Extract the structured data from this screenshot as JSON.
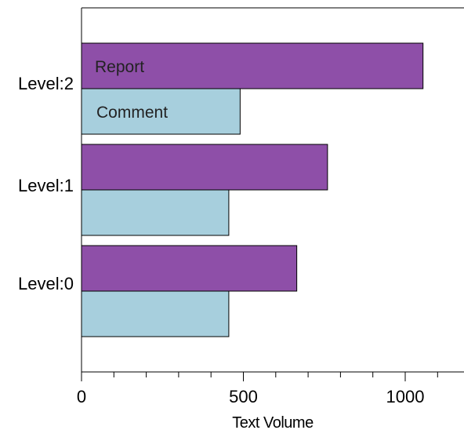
{
  "chart_data": {
    "type": "bar",
    "orientation": "horizontal",
    "title": "",
    "xlabel": "Text Volume",
    "ylabel": "",
    "categories": [
      "Level:0",
      "Level:1",
      "Level:2"
    ],
    "series": [
      {
        "name": "Report",
        "color": "#8e4fa8",
        "values": [
          665,
          760,
          1055
        ]
      },
      {
        "name": "Comment",
        "color": "#a7cfdd",
        "values": [
          455,
          455,
          490
        ]
      }
    ],
    "xlim": [
      0,
      1180
    ],
    "xticks_major": [
      0,
      500,
      1000
    ],
    "xtick_labels": [
      "0",
      "500",
      "1000"
    ],
    "xticks_minor_step": 100,
    "grid": false,
    "legend": "inline-bar-labels"
  }
}
